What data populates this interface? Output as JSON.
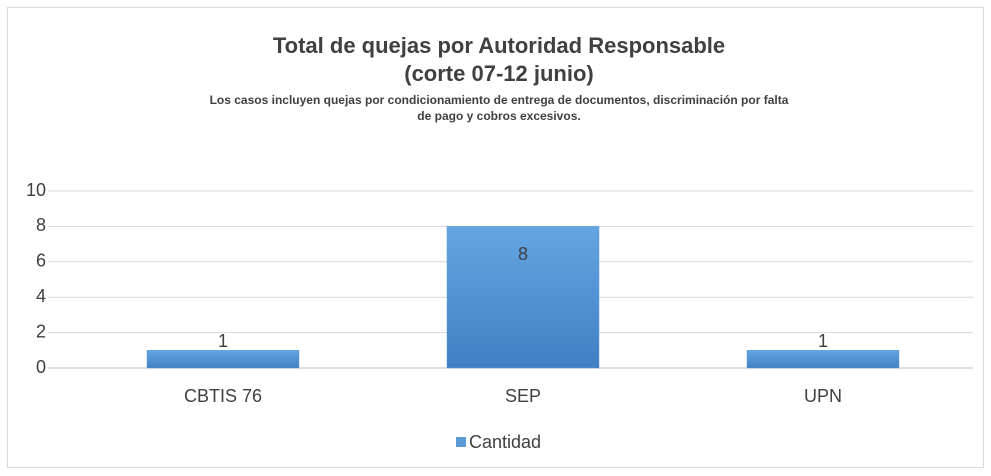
{
  "chart_data": {
    "type": "bar",
    "title": [
      "Total de quejas por Autoridad Responsable",
      "(corte 07-12 junio)"
    ],
    "subtitle": [
      "Los casos incluyen quejas por condicionamiento de entrega de documentos, discriminación por falta",
      "de pago y cobros excesivos."
    ],
    "categories": [
      "CBTIS 76",
      "SEP",
      "UPN"
    ],
    "series": [
      {
        "name": "Cantidad",
        "color": "#5b9bd5",
        "values": [
          1,
          8,
          1
        ]
      }
    ],
    "ylim": [
      0,
      10
    ],
    "yticks": [
      0,
      2,
      4,
      6,
      8,
      10
    ],
    "grid": true,
    "legend": "bottom"
  }
}
